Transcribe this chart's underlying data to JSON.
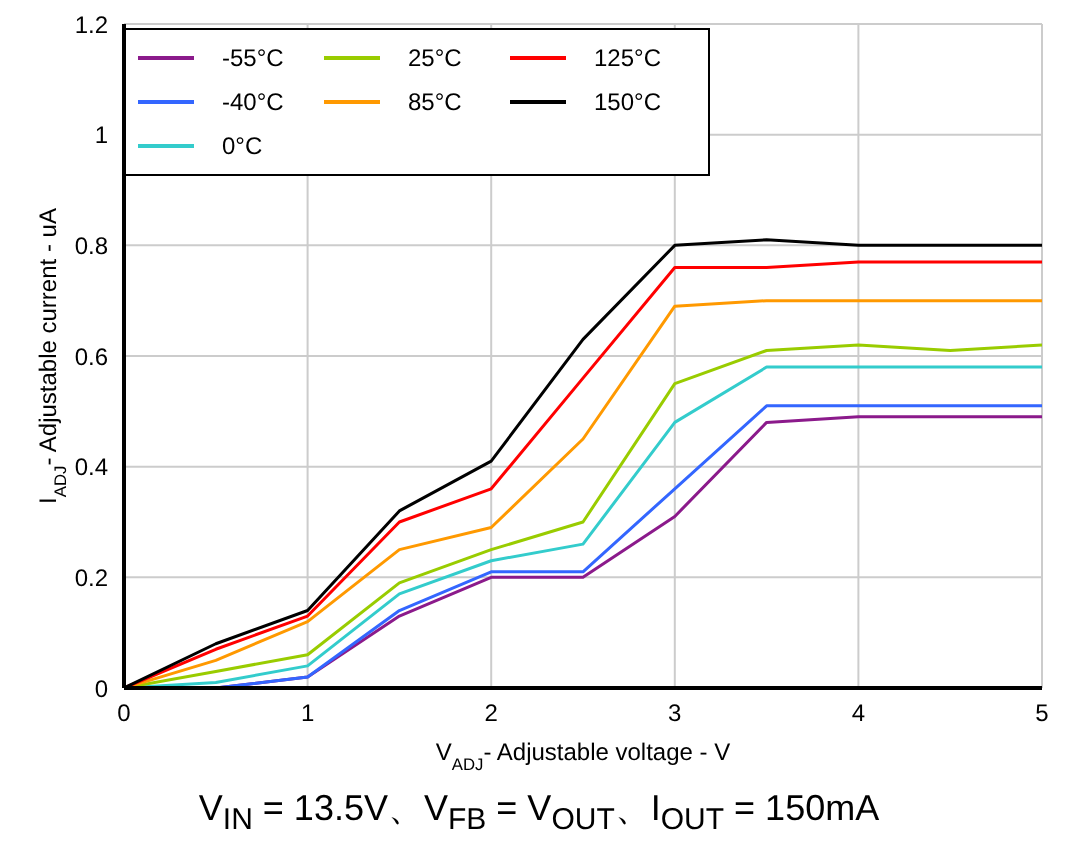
{
  "chart_data": {
    "type": "line",
    "xlabel": "V$_{ADJ}$- Adjustable voltage - V",
    "ylabel": "I$_{ADJ}$- Adjustable current - uA",
    "annotations": [
      "V$_{IN}$ = 13.5V、V$_{FB}$ = V$_{OUT}$、I$_{OUT}$ = 150mA"
    ],
    "x": [
      0,
      0.5,
      1,
      1.5,
      2,
      2.5,
      3,
      3.5,
      4,
      4.5,
      5
    ],
    "series": [
      {
        "name": "-55°C",
        "color": "#8b1a8b",
        "values": [
          0,
          0,
          0.02,
          0.13,
          0.2,
          0.2,
          0.31,
          0.48,
          0.49,
          0.49,
          0.49
        ]
      },
      {
        "name": "-40°C",
        "color": "#3366ff",
        "values": [
          0,
          0,
          0.02,
          0.14,
          0.21,
          0.21,
          0.36,
          0.51,
          0.51,
          0.51,
          0.51
        ]
      },
      {
        "name": "0°C",
        "color": "#33cccc",
        "values": [
          0,
          0.01,
          0.04,
          0.17,
          0.23,
          0.26,
          0.48,
          0.58,
          0.58,
          0.58,
          0.58
        ]
      },
      {
        "name": "25°C",
        "color": "#99cc00",
        "values": [
          0,
          0.03,
          0.06,
          0.19,
          0.25,
          0.3,
          0.55,
          0.61,
          0.62,
          0.61,
          0.62
        ]
      },
      {
        "name": "85°C",
        "color": "#ff9900",
        "values": [
          0,
          0.05,
          0.12,
          0.25,
          0.29,
          0.45,
          0.69,
          0.7,
          0.7,
          0.7,
          0.7
        ]
      },
      {
        "name": "125°C",
        "color": "#ff0000",
        "values": [
          0,
          0.07,
          0.13,
          0.3,
          0.36,
          0.56,
          0.76,
          0.76,
          0.77,
          0.77,
          0.77
        ]
      },
      {
        "name": "150°C",
        "color": "#000000",
        "values": [
          0,
          0.08,
          0.14,
          0.32,
          0.41,
          0.63,
          0.8,
          0.81,
          0.8,
          0.8,
          0.8
        ]
      }
    ],
    "xlim": [
      0,
      5
    ],
    "xticks": [
      0,
      1,
      2,
      3,
      4,
      5
    ],
    "ylim": [
      0,
      1.2
    ],
    "yticks": [
      0,
      0.2,
      0.4,
      0.6,
      0.8,
      1,
      1.2
    ],
    "grid": true,
    "legend": "top left",
    "marker": "none",
    "line_style": "solid"
  }
}
